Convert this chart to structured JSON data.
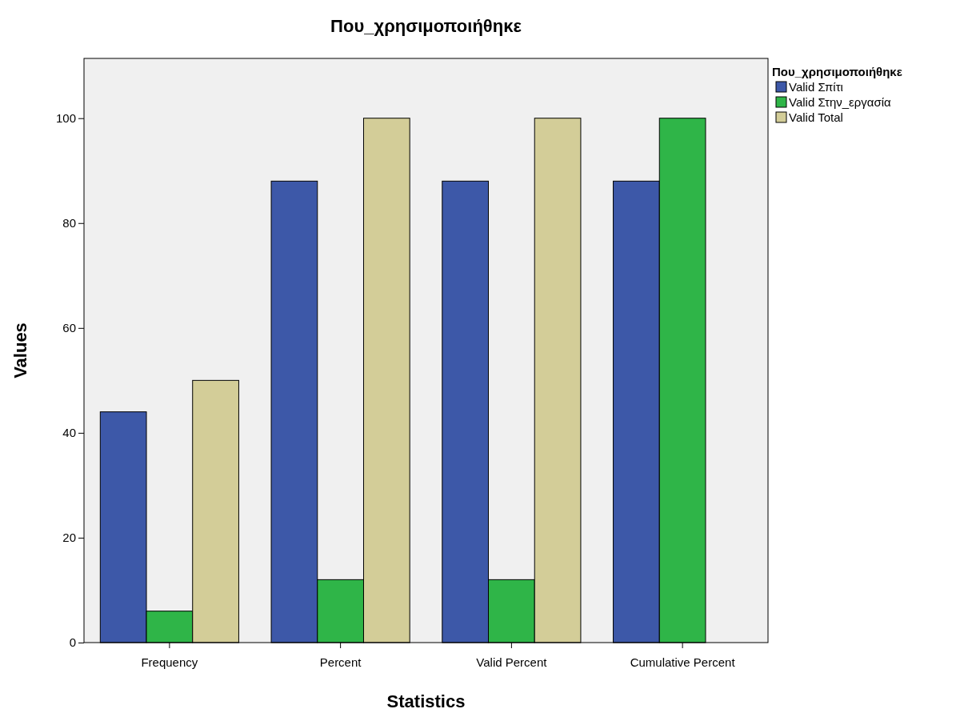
{
  "chart_data": {
    "type": "bar",
    "title": "Που_χρησιμοποιήθηκε",
    "xlabel": "Statistics",
    "ylabel": "Values",
    "legend_title": "Που_χρησιμοποιήθηκε",
    "legend": "top right",
    "categories": [
      "Frequency",
      "Percent",
      "Valid Percent",
      "Cumulative Percent"
    ],
    "series": [
      {
        "name": "Valid Σπίτι",
        "color": "#3d58a8",
        "values": [
          44,
          88,
          88,
          88
        ]
      },
      {
        "name": "Valid Στην_εργασία",
        "color": "#2fb548",
        "values": [
          6,
          12,
          12,
          100
        ]
      },
      {
        "name": "Valid Total",
        "color": "#d3cd98",
        "values": [
          50,
          100,
          100,
          null
        ]
      }
    ],
    "ylim": [
      0,
      111.4
    ],
    "yticks": [
      0,
      20,
      40,
      60,
      80,
      100
    ],
    "grid": false
  }
}
